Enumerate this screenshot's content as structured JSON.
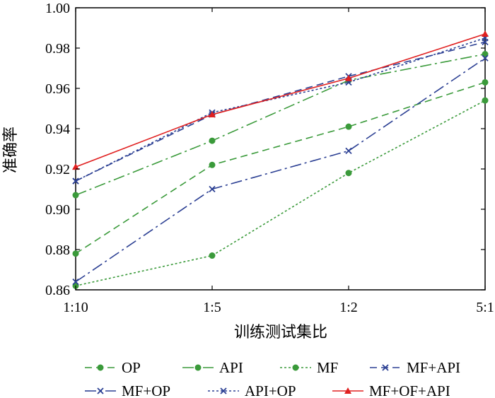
{
  "chart_data": {
    "type": "line",
    "title": "",
    "xlabel": "训练测试集比",
    "ylabel": "准确率",
    "categories": [
      "1:10",
      "1:5",
      "1:2",
      "5:1"
    ],
    "ylim": [
      0.86,
      1.0
    ],
    "yticks": [
      "0.86",
      "0.88",
      "0.90",
      "0.92",
      "0.94",
      "0.96",
      "0.98",
      "1.00"
    ],
    "grid": false,
    "legend_position": "bottom",
    "series": [
      {
        "name": "OP",
        "values": [
          0.878,
          0.922,
          0.941,
          0.963
        ],
        "color": "#3a9a3a",
        "dash": "10,6",
        "marker": "circle"
      },
      {
        "name": "API",
        "values": [
          0.907,
          0.934,
          0.964,
          0.977
        ],
        "color": "#3a9a3a",
        "dash": "16,5,3,5",
        "marker": "circle"
      },
      {
        "name": "MF",
        "values": [
          0.862,
          0.877,
          0.918,
          0.954
        ],
        "color": "#3a9a3a",
        "dash": "3,3",
        "marker": "circle"
      },
      {
        "name": "MF+API",
        "values": [
          0.914,
          0.947,
          0.966,
          0.983
        ],
        "color": "#2b3f93",
        "dash": "10,6",
        "marker": "x"
      },
      {
        "name": "MF+OP",
        "values": [
          0.864,
          0.91,
          0.929,
          0.975
        ],
        "color": "#2b3f93",
        "dash": "16,5,3,5",
        "marker": "x"
      },
      {
        "name": "API+OP",
        "values": [
          0.914,
          0.948,
          0.963,
          0.985
        ],
        "color": "#2b3f93",
        "dash": "3,3",
        "marker": "x"
      },
      {
        "name": "MF+OF+API",
        "values": [
          0.921,
          0.947,
          0.965,
          0.987
        ],
        "color": "#e02020",
        "dash": "",
        "marker": "triangle"
      }
    ]
  }
}
